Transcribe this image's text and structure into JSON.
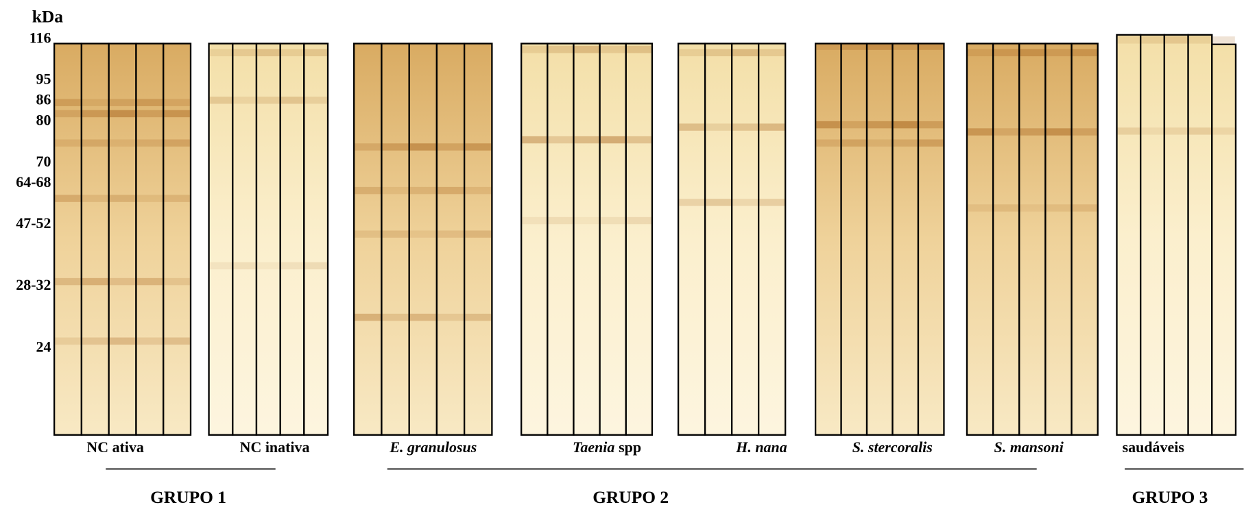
{
  "axis": {
    "unit": "kDa",
    "markers": [
      "116",
      "95",
      "86",
      "80",
      "70",
      "64-68",
      "47-52",
      "28-32",
      "24"
    ]
  },
  "panels": [
    {
      "label": [
        {
          "text": "NC ativa",
          "italic": false
        }
      ]
    },
    {
      "label": [
        {
          "text": "NC inativa",
          "italic": false
        }
      ]
    },
    {
      "label": [
        {
          "text": "E. granulosus",
          "italic": true
        }
      ]
    },
    {
      "label": [
        {
          "text": "Taenia",
          "italic": true
        },
        {
          "text": "spp",
          "italic": false
        }
      ]
    },
    {
      "label": [
        {
          "text": "H. nana",
          "italic": true
        }
      ]
    },
    {
      "label": [
        {
          "text": "S. stercoralis",
          "italic": true
        }
      ]
    },
    {
      "label": [
        {
          "text": "S. mansoni",
          "italic": true
        }
      ]
    },
    {
      "label": [
        {
          "text": "saudáveis",
          "italic": false
        }
      ]
    }
  ],
  "groups": [
    "GRUPO 1",
    "GRUPO 2",
    "GRUPO 3"
  ]
}
